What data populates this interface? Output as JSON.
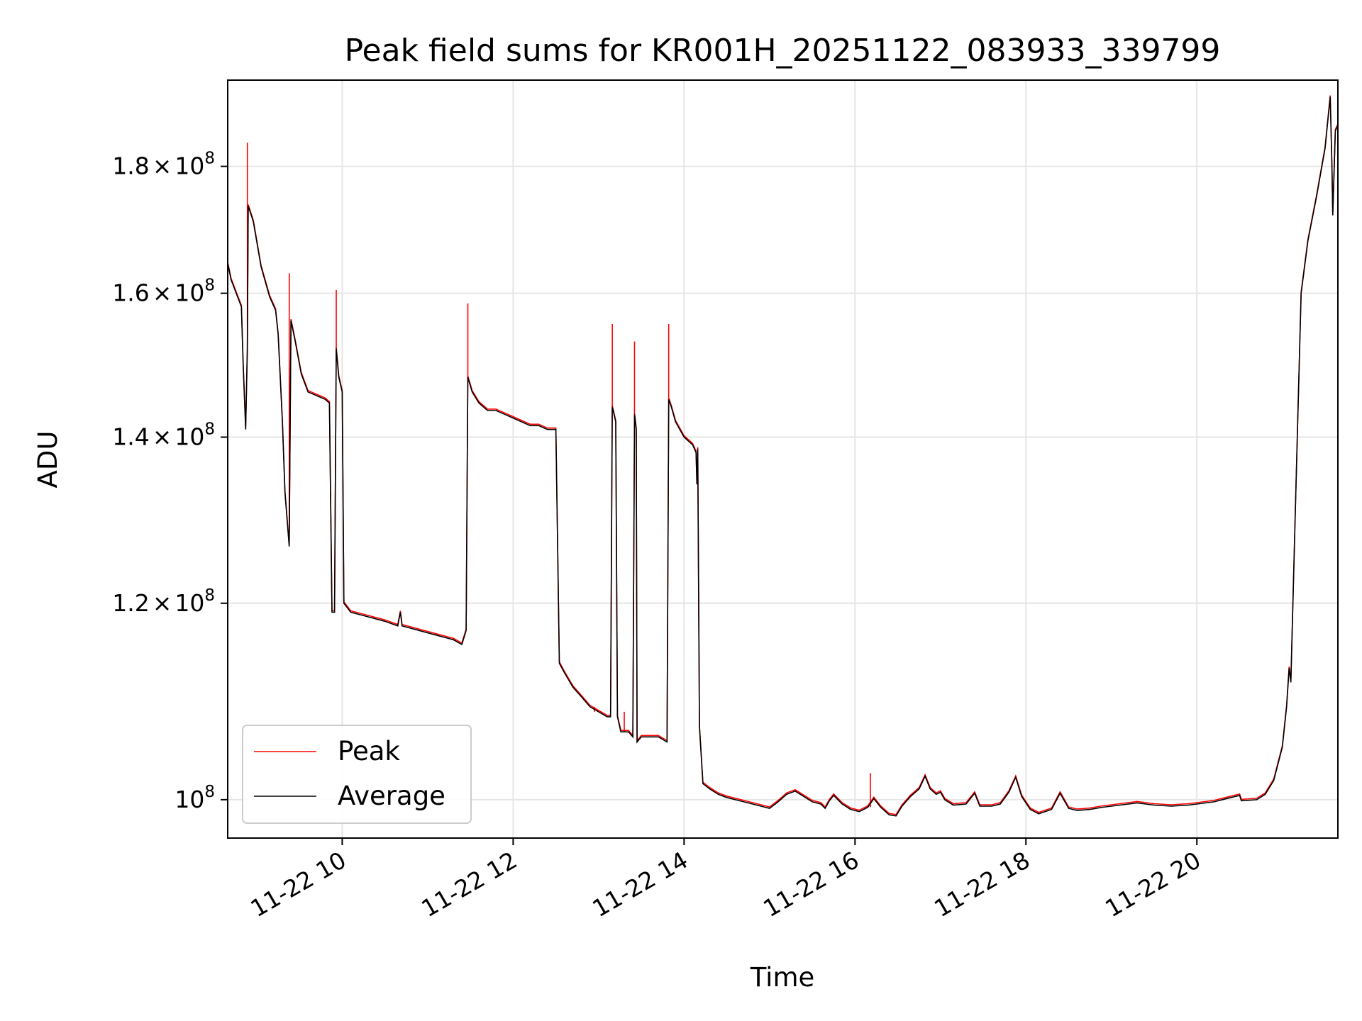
{
  "chart_data": {
    "type": "line",
    "title": "Peak field sums for KR001H_20251122_083933_339799",
    "xlabel": "Time",
    "ylabel": "ADU",
    "y_scale": "log",
    "xlim": [
      8.66,
      21.65
    ],
    "ylim": [
      96500000,
      195000000
    ],
    "x_unit": "hours of 2025-11-22",
    "x_ticks": [
      {
        "value": 10,
        "label": "11-22 10"
      },
      {
        "value": 12,
        "label": "11-22 12"
      },
      {
        "value": 14,
        "label": "11-22 14"
      },
      {
        "value": 16,
        "label": "11-22 16"
      },
      {
        "value": 18,
        "label": "11-22 18"
      },
      {
        "value": 20,
        "label": "11-22 20"
      }
    ],
    "y_ticks": [
      {
        "value": 100000000,
        "mantissa": "",
        "base": "10",
        "exp": "8"
      },
      {
        "value": 120000000,
        "mantissa": "1.2",
        "base": "10",
        "exp": "8"
      },
      {
        "value": 140000000,
        "mantissa": "1.4",
        "base": "10",
        "exp": "8"
      },
      {
        "value": 160000000,
        "mantissa": "1.6",
        "base": "10",
        "exp": "8"
      },
      {
        "value": 180000000,
        "mantissa": "1.8",
        "base": "10",
        "exp": "8"
      }
    ],
    "times_symbol": "×",
    "grid": true,
    "legend": {
      "position": "lower-left",
      "entries": [
        "Peak",
        "Average"
      ]
    },
    "series": [
      {
        "name": "Average",
        "color": "#000000",
        "points": [
          [
            8.66,
            164.5
          ],
          [
            8.7,
            162
          ],
          [
            8.76,
            160
          ],
          [
            8.82,
            158
          ],
          [
            8.84,
            150
          ],
          [
            8.87,
            141
          ],
          [
            8.89,
            152
          ],
          [
            8.9,
            173.5
          ],
          [
            8.96,
            171
          ],
          [
            9.05,
            164
          ],
          [
            9.15,
            159.5
          ],
          [
            9.22,
            157.5
          ],
          [
            9.25,
            154
          ],
          [
            9.3,
            142
          ],
          [
            9.33,
            133
          ],
          [
            9.38,
            126.5
          ],
          [
            9.4,
            156
          ],
          [
            9.45,
            153
          ],
          [
            9.52,
            148.5
          ],
          [
            9.6,
            146
          ],
          [
            9.7,
            145.5
          ],
          [
            9.8,
            145
          ],
          [
            9.85,
            144.5
          ],
          [
            9.88,
            119
          ],
          [
            9.91,
            119
          ],
          [
            9.93,
            152
          ],
          [
            9.96,
            148
          ],
          [
            10.0,
            146
          ],
          [
            10.02,
            120
          ],
          [
            10.1,
            119
          ],
          [
            10.3,
            118.5
          ],
          [
            10.5,
            118
          ],
          [
            10.65,
            117.5
          ],
          [
            10.68,
            119
          ],
          [
            10.7,
            117.5
          ],
          [
            10.9,
            117
          ],
          [
            11.1,
            116.5
          ],
          [
            11.3,
            116
          ],
          [
            11.4,
            115.5
          ],
          [
            11.45,
            117
          ],
          [
            11.47,
            148
          ],
          [
            11.52,
            146
          ],
          [
            11.6,
            144.5
          ],
          [
            11.7,
            143.5
          ],
          [
            11.8,
            143.5
          ],
          [
            11.9,
            143
          ],
          [
            12.0,
            142.5
          ],
          [
            12.1,
            142
          ],
          [
            12.2,
            141.5
          ],
          [
            12.3,
            141.5
          ],
          [
            12.4,
            141
          ],
          [
            12.5,
            141
          ],
          [
            12.52,
            127
          ],
          [
            12.54,
            113.5
          ],
          [
            12.6,
            112.5
          ],
          [
            12.7,
            111
          ],
          [
            12.8,
            110
          ],
          [
            12.9,
            109
          ],
          [
            13.0,
            108.5
          ],
          [
            13.1,
            108
          ],
          [
            13.14,
            108
          ],
          [
            13.16,
            144
          ],
          [
            13.2,
            142
          ],
          [
            13.22,
            108
          ],
          [
            13.26,
            106.5
          ],
          [
            13.3,
            106.5
          ],
          [
            13.35,
            106.5
          ],
          [
            13.4,
            106
          ],
          [
            13.42,
            143
          ],
          [
            13.44,
            141
          ],
          [
            13.45,
            105.5
          ],
          [
            13.5,
            106
          ],
          [
            13.6,
            106
          ],
          [
            13.7,
            106
          ],
          [
            13.8,
            105.5
          ],
          [
            13.82,
            145
          ],
          [
            13.85,
            144
          ],
          [
            13.9,
            142
          ],
          [
            14.0,
            140
          ],
          [
            14.1,
            139
          ],
          [
            14.14,
            138
          ],
          [
            14.15,
            134
          ],
          [
            14.16,
            138.5
          ],
          [
            14.18,
            107
          ],
          [
            14.22,
            101.5
          ],
          [
            14.3,
            101
          ],
          [
            14.4,
            100.5
          ],
          [
            14.5,
            100.2
          ],
          [
            14.7,
            99.8
          ],
          [
            14.9,
            99.4
          ],
          [
            15.0,
            99.2
          ],
          [
            15.1,
            99.8
          ],
          [
            15.2,
            100.5
          ],
          [
            15.3,
            100.8
          ],
          [
            15.4,
            100.3
          ],
          [
            15.5,
            99.8
          ],
          [
            15.6,
            99.6
          ],
          [
            15.65,
            99.2
          ],
          [
            15.7,
            99.9
          ],
          [
            15.75,
            100.4
          ],
          [
            15.85,
            99.6
          ],
          [
            15.95,
            99.1
          ],
          [
            16.05,
            98.9
          ],
          [
            16.15,
            99.3
          ],
          [
            16.22,
            100.1
          ],
          [
            16.3,
            99.3
          ],
          [
            16.4,
            98.6
          ],
          [
            16.48,
            98.5
          ],
          [
            16.55,
            99.4
          ],
          [
            16.65,
            100.3
          ],
          [
            16.75,
            101.0
          ],
          [
            16.82,
            102.2
          ],
          [
            16.88,
            101.0
          ],
          [
            16.95,
            100.5
          ],
          [
            17.0,
            100.7
          ],
          [
            17.05,
            100.0
          ],
          [
            17.15,
            99.5
          ],
          [
            17.3,
            99.6
          ],
          [
            17.4,
            100.6
          ],
          [
            17.46,
            99.4
          ],
          [
            17.6,
            99.4
          ],
          [
            17.7,
            99.6
          ],
          [
            17.8,
            100.7
          ],
          [
            17.88,
            102.1
          ],
          [
            17.95,
            100.3
          ],
          [
            18.05,
            99.1
          ],
          [
            18.15,
            98.7
          ],
          [
            18.3,
            99.1
          ],
          [
            18.4,
            100.6
          ],
          [
            18.5,
            99.2
          ],
          [
            18.6,
            99.0
          ],
          [
            18.75,
            99.1
          ],
          [
            18.9,
            99.3
          ],
          [
            19.1,
            99.5
          ],
          [
            19.3,
            99.7
          ],
          [
            19.5,
            99.5
          ],
          [
            19.7,
            99.4
          ],
          [
            19.9,
            99.5
          ],
          [
            20.0,
            99.6
          ],
          [
            20.2,
            99.8
          ],
          [
            20.35,
            100.1
          ],
          [
            20.5,
            100.4
          ],
          [
            20.52,
            99.9
          ],
          [
            20.7,
            100.0
          ],
          [
            20.8,
            100.5
          ],
          [
            20.9,
            101.8
          ],
          [
            21.0,
            105
          ],
          [
            21.05,
            109
          ],
          [
            21.08,
            113
          ],
          [
            21.1,
            111.5
          ],
          [
            21.15,
            130
          ],
          [
            21.22,
            160
          ],
          [
            21.3,
            168
          ],
          [
            21.4,
            175
          ],
          [
            21.5,
            183
          ],
          [
            21.56,
            192
          ],
          [
            21.58,
            180
          ],
          [
            21.59,
            172
          ],
          [
            21.62,
            186
          ],
          [
            21.65,
            187
          ]
        ]
      },
      {
        "name": "Peak",
        "color": "#ff0000",
        "spikes": [
          [
            8.89,
            184
          ],
          [
            9.38,
            163
          ],
          [
            9.93,
            160.5
          ],
          [
            11.47,
            158.5
          ],
          [
            13.16,
            155.5
          ],
          [
            13.42,
            153
          ],
          [
            13.82,
            155.5
          ],
          [
            16.18,
            102.5
          ],
          [
            13.3,
            108.5
          ],
          [
            12.95,
            108.5
          ]
        ]
      }
    ]
  }
}
